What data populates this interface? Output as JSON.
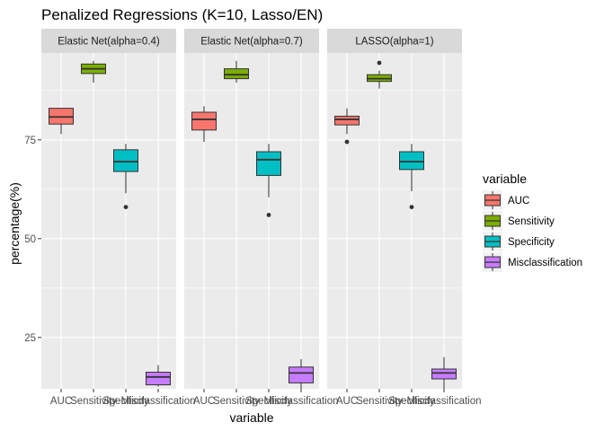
{
  "chart_data": {
    "type": "boxplot",
    "title": "Penalized Regressions (K=10, Lasso/EN)",
    "xlabel": "variable",
    "ylabel": "percentage(%)",
    "y_ticks": [
      25,
      50,
      75
    ],
    "ylim": [
      12,
      97
    ],
    "grid": true,
    "legend_position": "right",
    "legend": {
      "title": "variable",
      "entries": [
        {
          "label": "AUC",
          "color": "#F8766D"
        },
        {
          "label": "Sensitivity",
          "color": "#7CAE00"
        },
        {
          "label": "Specificity",
          "color": "#00BFC4"
        },
        {
          "label": "Misclassification",
          "color": "#C77CFF"
        }
      ]
    },
    "categories": [
      "AUC",
      "Sensitivity",
      "Specificity",
      "Misclassification"
    ],
    "panels": [
      {
        "label": "Elastic Net(alpha=0.4)",
        "boxes": [
          {
            "category": "AUC",
            "min": 76.5,
            "q1": 79,
            "median": 80.8,
            "q3": 83,
            "max": 83,
            "outliers": []
          },
          {
            "category": "Sensitivity",
            "min": 89.5,
            "q1": 91.8,
            "median": 93,
            "q3": 94.2,
            "max": 95,
            "outliers": []
          },
          {
            "category": "Specificity",
            "min": 61.5,
            "q1": 67,
            "median": 69.5,
            "q3": 72.5,
            "max": 74,
            "outliers": [
              58
            ]
          },
          {
            "category": "Misclassification",
            "min": 12.5,
            "q1": 13,
            "median": 15,
            "q3": 16.2,
            "max": 18,
            "outliers": []
          }
        ]
      },
      {
        "label": "Elastic Net(alpha=0.7)",
        "boxes": [
          {
            "category": "AUC",
            "min": 74.5,
            "q1": 77.5,
            "median": 80.2,
            "q3": 82,
            "max": 83.5,
            "outliers": []
          },
          {
            "category": "Sensitivity",
            "min": 89.5,
            "q1": 90.5,
            "median": 91.5,
            "q3": 93,
            "max": 95,
            "outliers": []
          },
          {
            "category": "Specificity",
            "min": 60.5,
            "q1": 66,
            "median": 70,
            "q3": 72,
            "max": 74,
            "outliers": [
              56
            ]
          },
          {
            "category": "Misclassification",
            "min": 12,
            "q1": 13.5,
            "median": 16,
            "q3": 17.5,
            "max": 19.5,
            "outliers": []
          }
        ]
      },
      {
        "label": "LASSO(alpha=1)",
        "boxes": [
          {
            "category": "AUC",
            "min": 76.5,
            "q1": 78.8,
            "median": 80.2,
            "q3": 81,
            "max": 83,
            "outliers": [
              74.5
            ]
          },
          {
            "category": "Sensitivity",
            "min": 88,
            "q1": 89.8,
            "median": 90.5,
            "q3": 91.5,
            "max": 92.5,
            "outliers": [
              94.5
            ]
          },
          {
            "category": "Specificity",
            "min": 62,
            "q1": 67.5,
            "median": 69.5,
            "q3": 72,
            "max": 74,
            "outliers": [
              58
            ]
          },
          {
            "category": "Misclassification",
            "min": 12,
            "q1": 14.5,
            "median": 16,
            "q3": 17,
            "max": 20,
            "outliers": []
          }
        ]
      }
    ]
  }
}
